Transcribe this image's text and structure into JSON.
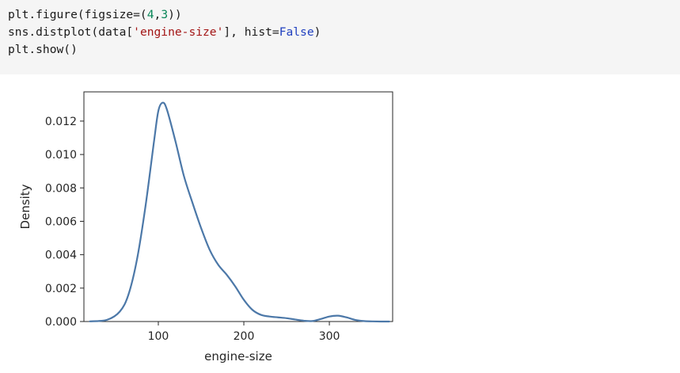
{
  "cell": {
    "lines": [
      [
        {
          "t": "plt.figure(figsize=(",
          "k": "plain"
        },
        {
          "t": "4",
          "k": "num"
        },
        {
          "t": ",",
          "k": "plain"
        },
        {
          "t": "3",
          "k": "num"
        },
        {
          "t": "))",
          "k": "plain"
        }
      ],
      [
        {
          "t": "sns.distplot(data[",
          "k": "plain"
        },
        {
          "t": "'engine-size'",
          "k": "str"
        },
        {
          "t": "], hist=",
          "k": "plain"
        },
        {
          "t": "False",
          "k": "kw"
        },
        {
          "t": ")",
          "k": "plain"
        }
      ],
      [
        {
          "t": "plt.show()",
          "k": "plain"
        }
      ]
    ]
  },
  "colors": {
    "cell_background": "#f5f5f5",
    "line_color": "#4c78a8",
    "number_token": "#098658",
    "string_token": "#a31515",
    "keyword_token": "#1f3fbf"
  },
  "chart_data": {
    "type": "line",
    "title": "",
    "xlabel": "engine-size",
    "ylabel": "Density",
    "xlim": [
      13,
      374
    ],
    "ylim": [
      0,
      0.01375
    ],
    "xticks": [
      100,
      200,
      300
    ],
    "xtick_labels": [
      "100",
      "200",
      "300"
    ],
    "yticks": [
      0,
      0.002,
      0.004,
      0.006,
      0.008,
      0.01,
      0.012
    ],
    "ytick_labels": [
      "0.000",
      "0.002",
      "0.004",
      "0.006",
      "0.008",
      "0.010",
      "0.012"
    ],
    "grid": false,
    "legend": false,
    "series": [
      {
        "x": [
          20,
          40,
          55,
          65,
          75,
          85,
          95,
          100,
          105,
          110,
          120,
          130,
          140,
          150,
          160,
          170,
          180,
          190,
          200,
          210,
          220,
          230,
          240,
          250,
          260,
          270,
          280,
          290,
          300,
          310,
          320,
          330,
          340,
          350,
          360,
          370
        ],
        "y": [
          1e-05,
          0.0001,
          0.0006,
          0.0016,
          0.0037,
          0.0069,
          0.0108,
          0.0126,
          0.0131,
          0.0127,
          0.0108,
          0.0087,
          0.0071,
          0.0056,
          0.0043,
          0.0034,
          0.0028,
          0.0021,
          0.0013,
          0.0007,
          0.0004,
          0.0003,
          0.00025,
          0.0002,
          0.00012,
          5e-05,
          3e-05,
          0.00015,
          0.0003,
          0.00035,
          0.00025,
          0.0001,
          3e-05,
          1e-05,
          0.0,
          0.0
        ]
      }
    ]
  }
}
